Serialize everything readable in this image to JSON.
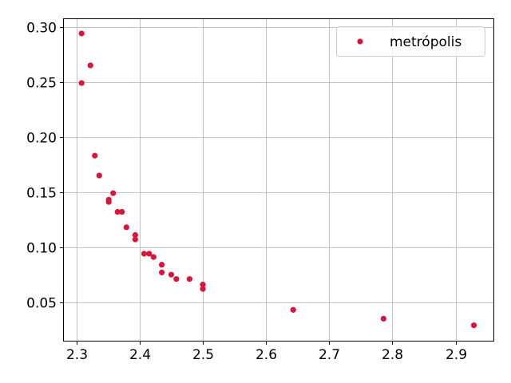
{
  "chart_data": {
    "type": "scatter",
    "title": "",
    "xlabel": "",
    "ylabel": "",
    "xlim": [
      2.28,
      2.96
    ],
    "ylim": [
      0.015,
      0.307
    ],
    "xticks": [
      2.3,
      2.4,
      2.5,
      2.6,
      2.7,
      2.8,
      2.9
    ],
    "xtick_labels": [
      "2.3",
      "2.4",
      "2.5",
      "2.6",
      "2.7",
      "2.8",
      "2.9"
    ],
    "yticks": [
      0.05,
      0.1,
      0.15,
      0.2,
      0.25,
      0.3
    ],
    "ytick_labels": [
      "0.05",
      "0.10",
      "0.15",
      "0.20",
      "0.25",
      "0.30"
    ],
    "grid": true,
    "legend_position": "top-right",
    "series": [
      {
        "name": "metrópolis",
        "color": "#dc143c",
        "points": [
          [
            2.308,
            0.294
          ],
          [
            2.308,
            0.249
          ],
          [
            2.322,
            0.265
          ],
          [
            2.329,
            0.183
          ],
          [
            2.336,
            0.165
          ],
          [
            2.351,
            0.143
          ],
          [
            2.351,
            0.141
          ],
          [
            2.358,
            0.149
          ],
          [
            2.365,
            0.132
          ],
          [
            2.372,
            0.132
          ],
          [
            2.379,
            0.118
          ],
          [
            2.393,
            0.111
          ],
          [
            2.393,
            0.107
          ],
          [
            2.407,
            0.094
          ],
          [
            2.415,
            0.094
          ],
          [
            2.422,
            0.091
          ],
          [
            2.435,
            0.084
          ],
          [
            2.435,
            0.077
          ],
          [
            2.45,
            0.075
          ],
          [
            2.458,
            0.071
          ],
          [
            2.479,
            0.071
          ],
          [
            2.5,
            0.066
          ],
          [
            2.5,
            0.062
          ],
          [
            2.643,
            0.043
          ],
          [
            2.786,
            0.035
          ],
          [
            2.929,
            0.029
          ]
        ]
      }
    ]
  }
}
